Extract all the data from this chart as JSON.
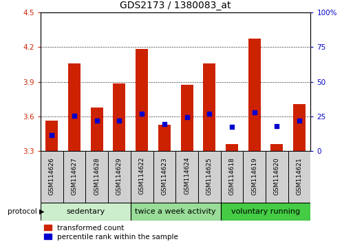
{
  "title": "GDS2173 / 1380083_at",
  "samples": [
    "GSM114626",
    "GSM114627",
    "GSM114628",
    "GSM114629",
    "GSM114622",
    "GSM114623",
    "GSM114624",
    "GSM114625",
    "GSM114618",
    "GSM114619",
    "GSM114620",
    "GSM114621"
  ],
  "bar_heights": [
    3.565,
    4.06,
    3.68,
    3.885,
    4.185,
    3.53,
    3.875,
    4.06,
    3.365,
    4.27,
    3.36,
    3.71
  ],
  "bar_base": 3.3,
  "blue_dot_values": [
    3.44,
    3.605,
    3.565,
    3.565,
    3.625,
    3.535,
    3.595,
    3.625,
    3.51,
    3.635,
    3.515,
    3.565
  ],
  "blue_dot_size": 18,
  "groups": [
    {
      "label": "sedentary",
      "start": 0,
      "end": 4,
      "color": "#cceecc"
    },
    {
      "label": "twice a week activity",
      "start": 4,
      "end": 8,
      "color": "#99dd99"
    },
    {
      "label": "voluntary running",
      "start": 8,
      "end": 12,
      "color": "#44cc44"
    }
  ],
  "protocol_label": "protocol",
  "ylim_left": [
    3.3,
    4.5
  ],
  "ylim_right": [
    0,
    100
  ],
  "yticks_left": [
    3.3,
    3.6,
    3.9,
    4.2,
    4.5
  ],
  "ytick_left_labels": [
    "3.3",
    "3.6",
    "3.9",
    "4.2",
    "4.5"
  ],
  "yticks_right": [
    0,
    25,
    50,
    75,
    100
  ],
  "ytick_right_labels": [
    "0",
    "25",
    "50",
    "75",
    "100%"
  ],
  "bar_color": "#cc2200",
  "dot_color": "#0000cc",
  "bar_width": 0.55,
  "background_color": "#ffffff",
  "grid_color": "#000000",
  "left_tick_color": "#cc2200",
  "right_tick_color": "#0000cc",
  "legend_red_label": "transformed count",
  "legend_blue_label": "percentile rank within the sample",
  "sample_box_color": "#d0d0d0",
  "title_fontsize": 10,
  "tick_fontsize": 7.5,
  "label_fontsize": 6.5,
  "group_fontsize": 8,
  "legend_fontsize": 7.5
}
